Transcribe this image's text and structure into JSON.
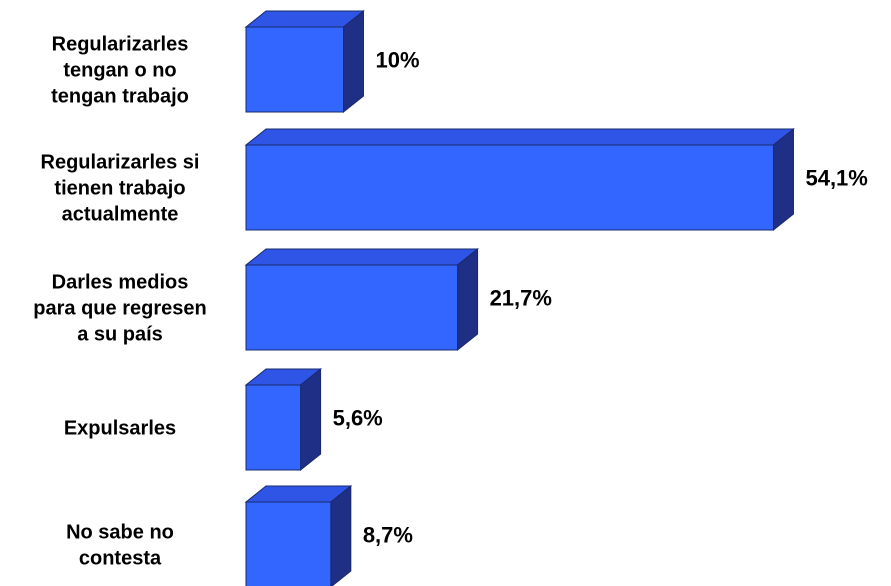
{
  "chart_data": {
    "type": "bar",
    "orientation": "horizontal",
    "three_d": true,
    "categories": [
      [
        "Regularizarles",
        "tengan o no",
        "tengan trabajo"
      ],
      [
        "Regularizarles si",
        "tienen trabajo",
        "actualmente"
      ],
      [
        "Darles medios",
        "para que regresen",
        "a su país"
      ],
      [
        "Expulsarles"
      ],
      [
        "No sabe no",
        "contesta"
      ]
    ],
    "values": [
      10,
      54.1,
      21.7,
      5.6,
      8.7
    ],
    "value_labels": [
      "10%",
      "54,1%",
      "21,7%",
      "5,6%",
      "8,7%"
    ],
    "title": "",
    "xlabel": "",
    "ylabel": "",
    "grid": false,
    "colors": {
      "front": "#3366FF",
      "top": "#2E55E6",
      "side": "#1F2F85",
      "edge": "#1A2A6C"
    }
  }
}
